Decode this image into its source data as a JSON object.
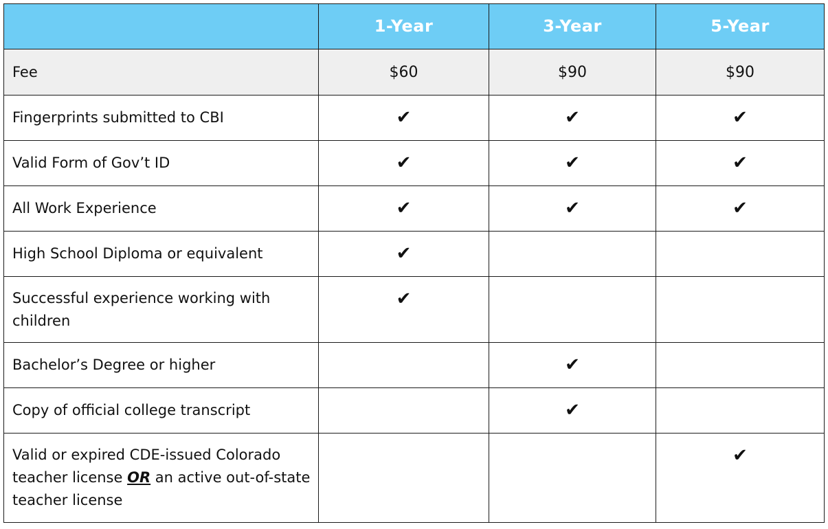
{
  "header": {
    "corner": "",
    "columns": [
      "1-Year",
      "3-Year",
      "5-Year"
    ]
  },
  "fee_row": {
    "label": "Fee",
    "values": [
      "$60",
      "$90",
      "$90"
    ]
  },
  "rows": [
    {
      "label": "Fingerprints submitted to CBI",
      "checks": [
        true,
        true,
        true
      ]
    },
    {
      "label": "Valid Form of Gov’t ID",
      "checks": [
        true,
        true,
        true
      ]
    },
    {
      "label": "All Work Experience",
      "checks": [
        true,
        true,
        true
      ]
    },
    {
      "label": "High School Diploma or equivalent",
      "checks": [
        true,
        false,
        false
      ]
    },
    {
      "label": "Successful experience working with children",
      "checks": [
        true,
        false,
        false
      ]
    },
    {
      "label": "Bachelor’s Degree or higher",
      "checks": [
        false,
        true,
        false
      ]
    },
    {
      "label": "Copy of official college transcript",
      "checks": [
        false,
        true,
        false
      ]
    }
  ],
  "last_row": {
    "label_part1": "Valid or expired CDE-issued Colorado teacher license ",
    "label_or": "OR",
    "label_part2": " an active out-of-state teacher license",
    "checks": [
      false,
      false,
      true
    ]
  },
  "check_mark": "✔",
  "colors": {
    "header_bg": "#6ecdf5",
    "fee_row_bg": "#efefef",
    "border": "#1a1a1a"
  }
}
